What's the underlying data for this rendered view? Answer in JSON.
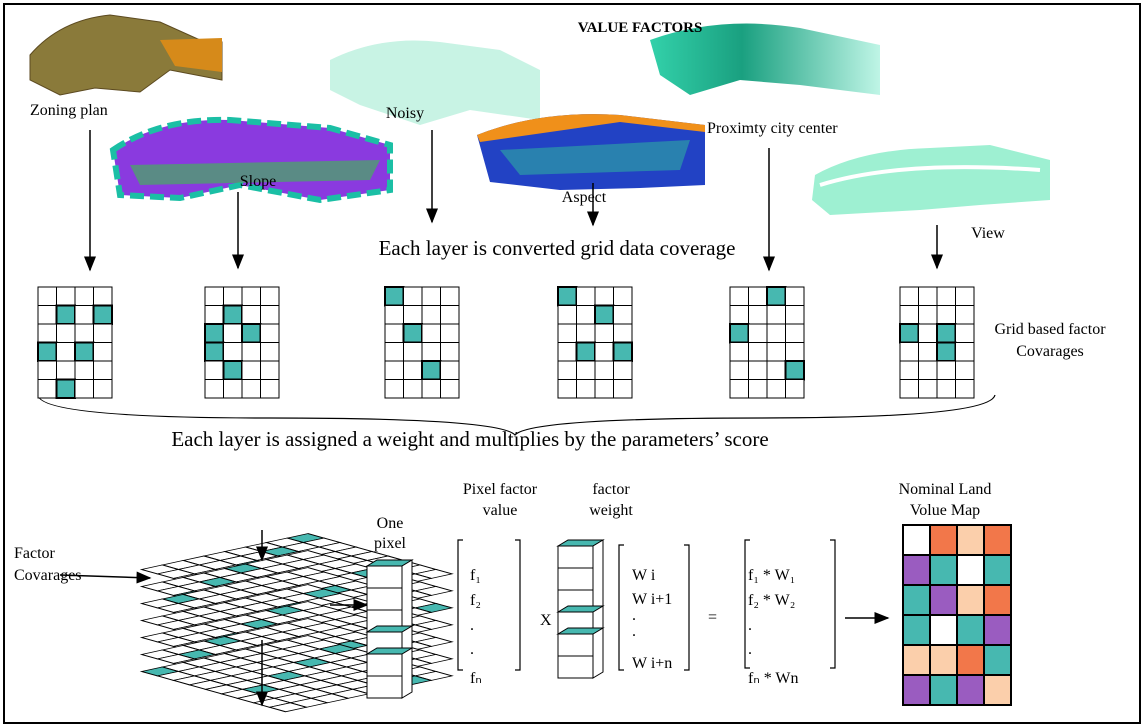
{
  "title": "VALUE FACTORS",
  "layers": [
    "Zoning plan",
    "Noisy",
    "Proximty city center",
    "Slope",
    "Aspect",
    "View"
  ],
  "step1": "Each layer is converted grid data coverage",
  "grid_label": [
    "Grid based factor",
    "Covarages"
  ],
  "step2": "Each layer is assigned a weight and multiplies by the parameters’ score",
  "factor_label": [
    "Factor",
    "Covarages"
  ],
  "pixel_label": [
    "One",
    "pixel"
  ],
  "value_label": [
    "Pixel factor",
    "value"
  ],
  "weight_label": [
    "factor",
    "weight"
  ],
  "factor_vector": [
    "f₁",
    "f₂",
    ".",
    ".",
    "fₙ"
  ],
  "times": "X",
  "weight_vector": [
    "W i",
    "W i+1",
    ".",
    ".",
    "W i+n"
  ],
  "equals": "=",
  "result_vector": [
    "f₁ * W₁",
    "f₂ * W₂",
    ".",
    ".",
    "fₙ * Wn"
  ],
  "map_label": [
    "Nominal Land",
    "Volue Map"
  ]
}
